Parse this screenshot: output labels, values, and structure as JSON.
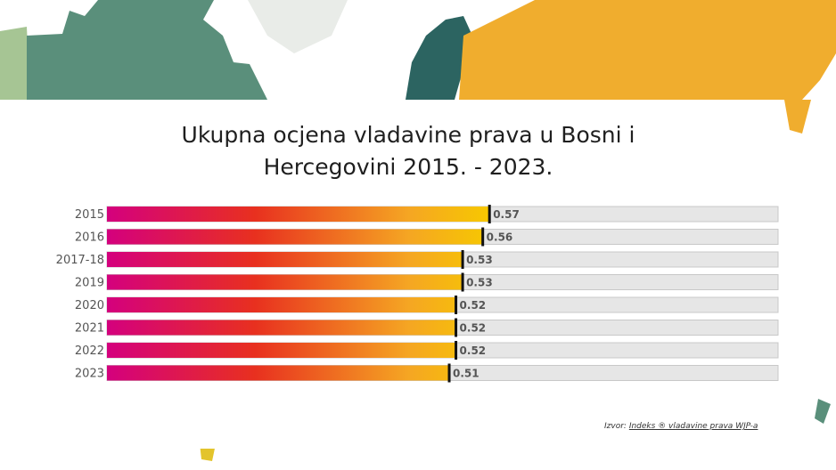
{
  "title": "Ukupna ocjena vladavine prava u Bosni i Hercegovini 2015. - 2023.",
  "source": {
    "prefix": "Izvor:",
    "link_text": "Indeks ® vladavine prava WJP-a"
  },
  "colors": {
    "gradient": [
      "#d4007e",
      "#e8301f",
      "#f5a623",
      "#f7c800"
    ],
    "track": "#e6e6e6",
    "marker": "#111111",
    "map_teal": "#5a8f7b",
    "map_dark_teal": "#2c6461",
    "map_orange": "#f0ad2e",
    "map_yellow": "#e3c42c",
    "map_light_green": "#a6c594"
  },
  "chart_data": {
    "type": "bar",
    "orientation": "horizontal",
    "categories": [
      "2015",
      "2016",
      "2017-18",
      "2019",
      "2020",
      "2021",
      "2022",
      "2023"
    ],
    "values": [
      0.57,
      0.56,
      0.53,
      0.53,
      0.52,
      0.52,
      0.52,
      0.51
    ],
    "value_labels": [
      "0.57",
      "0.56",
      "0.53",
      "0.53",
      "0.52",
      "0.52",
      "0.52",
      "0.51"
    ],
    "xlim": [
      0,
      1
    ],
    "grid": false,
    "legend": "none"
  }
}
